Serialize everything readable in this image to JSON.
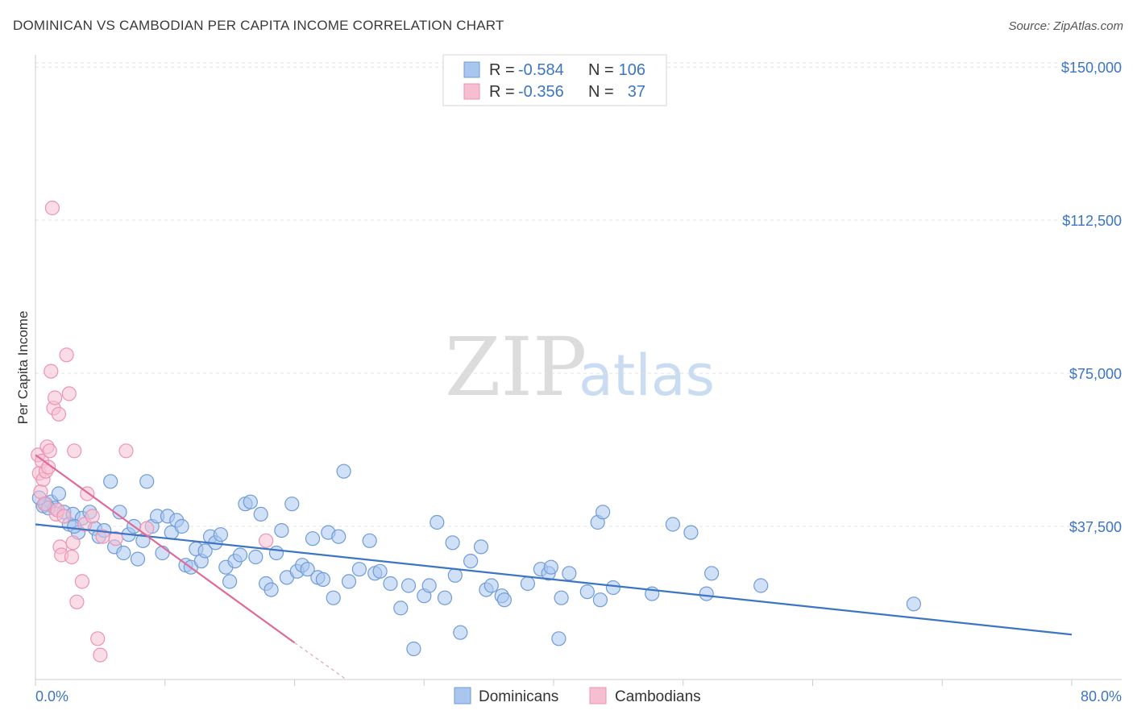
{
  "header": {
    "title": "DOMINICAN VS CAMBODIAN PER CAPITA INCOME CORRELATION CHART",
    "source": "Source: ZipAtlas.com"
  },
  "watermark": {
    "zip": "ZIP",
    "atlas": "atlas"
  },
  "colors": {
    "blue": "#3b75c4",
    "blue_fill": "#a9c6ef",
    "blue_stroke": "#6f9bd8",
    "pink": "#e0699a",
    "pink_fill": "#f6bfd1",
    "pink_stroke": "#ec93b3",
    "grid": "#e3e3e3"
  },
  "legend": {
    "rows": [
      {
        "r_label": "R =",
        "r_value": "-0.584",
        "n_label": "N =",
        "n_value": "106"
      },
      {
        "r_label": "R =",
        "r_value": "-0.356",
        "n_label": "N =",
        "n_value": "37"
      }
    ]
  },
  "bottom_legend": {
    "items": [
      "Dominicans",
      "Cambodians"
    ]
  },
  "chart_data": {
    "type": "scatter",
    "title": "DOMINICAN VS CAMBODIAN PER CAPITA INCOME CORRELATION CHART",
    "xlabel": "",
    "ylabel": "Per Capita Income",
    "xlim": [
      0,
      80
    ],
    "ylim": [
      0,
      153000
    ],
    "x_tick_labels": {
      "left": "0.0%",
      "right": "80.0%"
    },
    "y_ticks": [
      {
        "value": 37500,
        "label": "$37,500"
      },
      {
        "value": 75000,
        "label": "$75,000"
      },
      {
        "value": 112500,
        "label": "$112,500"
      },
      {
        "value": 150000,
        "label": "$150,000"
      }
    ],
    "series": [
      {
        "name": "Dominicans",
        "r": -0.584,
        "n": 106,
        "trend": {
          "x0": 0,
          "y0": 38000,
          "x1": 80,
          "y1": 11000
        },
        "points": [
          [
            0.6,
            42500
          ],
          [
            0.8,
            43000
          ],
          [
            1.2,
            43500
          ],
          [
            1.5,
            42000
          ],
          [
            1.8,
            45500
          ],
          [
            2.2,
            41000
          ],
          [
            2.6,
            38000
          ],
          [
            2.9,
            40500
          ],
          [
            3.3,
            36000
          ],
          [
            3.6,
            39500
          ],
          [
            4.2,
            41000
          ],
          [
            4.6,
            37000
          ],
          [
            4.9,
            35000
          ],
          [
            5.3,
            36500
          ],
          [
            5.8,
            48500
          ],
          [
            6.1,
            32500
          ],
          [
            6.5,
            41000
          ],
          [
            6.8,
            31000
          ],
          [
            7.2,
            35500
          ],
          [
            7.6,
            37500
          ],
          [
            7.9,
            29500
          ],
          [
            8.3,
            34000
          ],
          [
            8.6,
            48500
          ],
          [
            9.0,
            37500
          ],
          [
            9.4,
            40000
          ],
          [
            9.8,
            31000
          ],
          [
            10.2,
            40000
          ],
          [
            10.5,
            36000
          ],
          [
            10.9,
            39000
          ],
          [
            11.3,
            37500
          ],
          [
            11.6,
            28000
          ],
          [
            12.0,
            27500
          ],
          [
            12.4,
            32000
          ],
          [
            12.8,
            29000
          ],
          [
            13.1,
            31500
          ],
          [
            13.5,
            35000
          ],
          [
            13.9,
            33500
          ],
          [
            14.3,
            35500
          ],
          [
            14.7,
            27500
          ],
          [
            15.0,
            24000
          ],
          [
            15.4,
            29000
          ],
          [
            15.8,
            30500
          ],
          [
            16.2,
            43000
          ],
          [
            16.6,
            43500
          ],
          [
            17.0,
            30000
          ],
          [
            17.4,
            40500
          ],
          [
            17.8,
            23500
          ],
          [
            18.2,
            22000
          ],
          [
            18.6,
            31000
          ],
          [
            19.0,
            36500
          ],
          [
            19.4,
            25000
          ],
          [
            19.8,
            43000
          ],
          [
            20.2,
            26500
          ],
          [
            20.6,
            28000
          ],
          [
            21.0,
            27000
          ],
          [
            21.4,
            34500
          ],
          [
            21.8,
            25000
          ],
          [
            22.2,
            24500
          ],
          [
            22.6,
            36000
          ],
          [
            23.0,
            20000
          ],
          [
            23.4,
            35000
          ],
          [
            23.8,
            51000
          ],
          [
            24.2,
            24000
          ],
          [
            25.0,
            27000
          ],
          [
            25.8,
            34000
          ],
          [
            26.2,
            26000
          ],
          [
            26.6,
            26500
          ],
          [
            27.4,
            23500
          ],
          [
            28.2,
            17500
          ],
          [
            28.8,
            23000
          ],
          [
            29.2,
            7500
          ],
          [
            30.0,
            20500
          ],
          [
            30.4,
            23000
          ],
          [
            31.0,
            38500
          ],
          [
            31.6,
            20000
          ],
          [
            32.2,
            33500
          ],
          [
            32.4,
            25500
          ],
          [
            32.8,
            11500
          ],
          [
            33.6,
            29000
          ],
          [
            34.4,
            32500
          ],
          [
            34.8,
            22000
          ],
          [
            35.2,
            23000
          ],
          [
            36.0,
            20500
          ],
          [
            36.2,
            19500
          ],
          [
            38.0,
            23500
          ],
          [
            39.0,
            27000
          ],
          [
            39.6,
            26000
          ],
          [
            39.8,
            27500
          ],
          [
            40.4,
            10000
          ],
          [
            40.6,
            20000
          ],
          [
            41.2,
            26000
          ],
          [
            42.6,
            21500
          ],
          [
            43.4,
            38500
          ],
          [
            43.6,
            19500
          ],
          [
            43.8,
            41000
          ],
          [
            44.6,
            22500
          ],
          [
            47.6,
            21000
          ],
          [
            49.2,
            38000
          ],
          [
            50.6,
            36000
          ],
          [
            51.8,
            21000
          ],
          [
            52.2,
            26000
          ],
          [
            56.0,
            23000
          ],
          [
            67.8,
            18500
          ],
          [
            0.3,
            44500
          ],
          [
            1.0,
            42000
          ],
          [
            3.0,
            37500
          ]
        ]
      },
      {
        "name": "Cambodians",
        "r": -0.356,
        "n": 37,
        "trend": {
          "x0": 0,
          "y0": 55000,
          "x1": 20,
          "y1": 9000,
          "dash_x1": 24,
          "dash_y1": 0
        },
        "points": [
          [
            0.2,
            55000
          ],
          [
            0.3,
            50500
          ],
          [
            0.4,
            46000
          ],
          [
            0.5,
            53500
          ],
          [
            0.6,
            49000
          ],
          [
            0.7,
            43000
          ],
          [
            0.8,
            51000
          ],
          [
            0.9,
            57000
          ],
          [
            1.0,
            52000
          ],
          [
            1.2,
            75500
          ],
          [
            1.3,
            115500
          ],
          [
            1.4,
            66500
          ],
          [
            1.5,
            69000
          ],
          [
            1.6,
            40500
          ],
          [
            1.7,
            41500
          ],
          [
            1.8,
            65000
          ],
          [
            1.9,
            32500
          ],
          [
            2.0,
            30500
          ],
          [
            2.2,
            40000
          ],
          [
            2.4,
            79500
          ],
          [
            2.6,
            70000
          ],
          [
            2.8,
            30000
          ],
          [
            3.0,
            56000
          ],
          [
            3.2,
            19000
          ],
          [
            3.6,
            24000
          ],
          [
            3.8,
            38000
          ],
          [
            4.0,
            45500
          ],
          [
            4.4,
            40000
          ],
          [
            4.8,
            10000
          ],
          [
            5.0,
            6000
          ],
          [
            5.2,
            35000
          ],
          [
            6.2,
            34500
          ],
          [
            7.0,
            56000
          ],
          [
            8.6,
            37000
          ],
          [
            17.8,
            34000
          ],
          [
            2.9,
            33500
          ],
          [
            1.1,
            56000
          ]
        ]
      }
    ]
  }
}
